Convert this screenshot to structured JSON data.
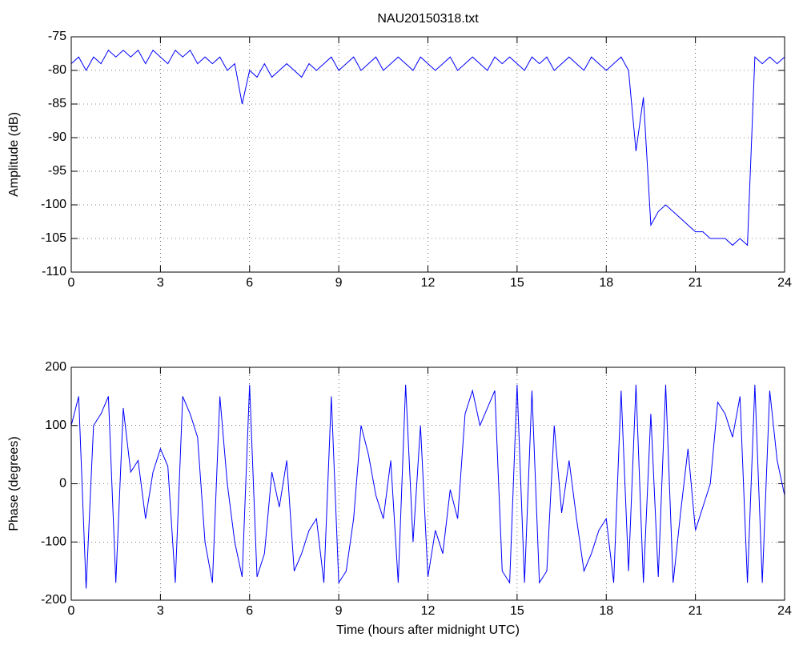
{
  "chart_data": [
    {
      "type": "line",
      "title": "NAU20150318.txt",
      "ylabel": "Amplitude (dB)",
      "xlim": [
        0,
        24
      ],
      "xticks": [
        0,
        3,
        6,
        9,
        12,
        15,
        18,
        21,
        24
      ],
      "ylim": [
        -110,
        -75
      ],
      "yticks": [
        -110,
        -105,
        -100,
        -95,
        -90,
        -85,
        -80,
        -75
      ],
      "grid": true,
      "series": [
        {
          "color": "#0000ff",
          "x": [
            0,
            0.25,
            0.5,
            0.75,
            1,
            1.25,
            1.5,
            1.75,
            2,
            2.25,
            2.5,
            2.75,
            3,
            3.25,
            3.5,
            3.75,
            4,
            4.25,
            4.5,
            4.75,
            5,
            5.25,
            5.5,
            5.75,
            6,
            6.25,
            6.5,
            6.75,
            7,
            7.25,
            7.5,
            7.75,
            8,
            8.25,
            8.5,
            8.75,
            9,
            9.25,
            9.5,
            9.75,
            10,
            10.25,
            10.5,
            10.75,
            11,
            11.25,
            11.5,
            11.75,
            12,
            12.25,
            12.5,
            12.75,
            13,
            13.25,
            13.5,
            13.75,
            14,
            14.25,
            14.5,
            14.75,
            15,
            15.25,
            15.5,
            15.75,
            16,
            16.25,
            16.5,
            16.75,
            17,
            17.25,
            17.5,
            17.75,
            18,
            18.25,
            18.5,
            18.75,
            19,
            19.25,
            19.5,
            19.75,
            20,
            20.25,
            20.5,
            20.75,
            21,
            21.25,
            21.5,
            21.75,
            22,
            22.25,
            22.5,
            22.75,
            23,
            23.25,
            23.5,
            23.75,
            24
          ],
          "values": [
            -79,
            -78,
            -80,
            -78,
            -79,
            -77,
            -78,
            -77,
            -78,
            -77,
            -79,
            -77,
            -78,
            -79,
            -77,
            -78,
            -77,
            -79,
            -78,
            -79,
            -78,
            -80,
            -79,
            -85,
            -80,
            -81,
            -79,
            -81,
            -80,
            -79,
            -80,
            -81,
            -79,
            -80,
            -79,
            -78,
            -80,
            -79,
            -78,
            -80,
            -79,
            -78,
            -80,
            -79,
            -78,
            -79,
            -80,
            -78,
            -79,
            -80,
            -79,
            -78,
            -80,
            -79,
            -78,
            -79,
            -80,
            -78,
            -79,
            -78,
            -79,
            -80,
            -78,
            -79,
            -78,
            -80,
            -79,
            -78,
            -79,
            -80,
            -78,
            -79,
            -80,
            -79,
            -78,
            -80,
            -92,
            -84,
            -103,
            -101,
            -100,
            -101,
            -102,
            -103,
            -104,
            -104,
            -105,
            -105,
            -105,
            -106,
            -105,
            -106,
            -78,
            -79,
            -78,
            -79,
            -78
          ]
        }
      ]
    },
    {
      "type": "line",
      "ylabel": "Phase (degrees)",
      "xlabel": "Time (hours after midnight UTC)",
      "xlim": [
        0,
        24
      ],
      "xticks": [
        0,
        3,
        6,
        9,
        12,
        15,
        18,
        21,
        24
      ],
      "ylim": [
        -200,
        200
      ],
      "yticks": [
        -200,
        -100,
        0,
        100,
        200
      ],
      "grid": true,
      "series": [
        {
          "color": "#0000ff",
          "x": [
            0,
            0.25,
            0.5,
            0.75,
            1,
            1.25,
            1.5,
            1.75,
            2,
            2.25,
            2.5,
            2.75,
            3,
            3.25,
            3.5,
            3.75,
            4,
            4.25,
            4.5,
            4.75,
            5,
            5.25,
            5.5,
            5.75,
            6,
            6.25,
            6.5,
            6.75,
            7,
            7.25,
            7.5,
            7.75,
            8,
            8.25,
            8.5,
            8.75,
            9,
            9.25,
            9.5,
            9.75,
            10,
            10.25,
            10.5,
            10.75,
            11,
            11.25,
            11.5,
            11.75,
            12,
            12.25,
            12.5,
            12.75,
            13,
            13.25,
            13.5,
            13.75,
            14,
            14.25,
            14.5,
            14.75,
            15,
            15.25,
            15.5,
            15.75,
            16,
            16.25,
            16.5,
            16.75,
            17,
            17.25,
            17.5,
            17.75,
            18,
            18.25,
            18.5,
            18.75,
            19,
            19.25,
            19.5,
            19.75,
            20,
            20.25,
            20.5,
            20.75,
            21,
            21.25,
            21.5,
            21.75,
            22,
            22.25,
            22.5,
            22.75,
            23,
            23.25,
            23.5,
            23.75,
            24
          ],
          "values": [
            100,
            150,
            -180,
            100,
            120,
            150,
            -170,
            130,
            20,
            40,
            -60,
            20,
            60,
            30,
            -170,
            150,
            120,
            80,
            -100,
            -170,
            150,
            0,
            -100,
            -160,
            170,
            -160,
            -120,
            20,
            -40,
            40,
            -150,
            -120,
            -80,
            -60,
            -170,
            150,
            -170,
            -150,
            -60,
            100,
            50,
            -20,
            -60,
            40,
            -170,
            170,
            -100,
            100,
            -160,
            -80,
            -120,
            -10,
            -60,
            120,
            160,
            100,
            130,
            160,
            -150,
            -170,
            170,
            -170,
            160,
            -170,
            -150,
            100,
            -50,
            40,
            -60,
            -150,
            -120,
            -80,
            -60,
            -170,
            160,
            -150,
            170,
            -170,
            120,
            -160,
            170,
            -170,
            -50,
            60,
            -80,
            -40,
            0,
            140,
            120,
            80,
            150,
            -170,
            170,
            -170,
            160,
            40,
            -20
          ]
        }
      ]
    }
  ]
}
